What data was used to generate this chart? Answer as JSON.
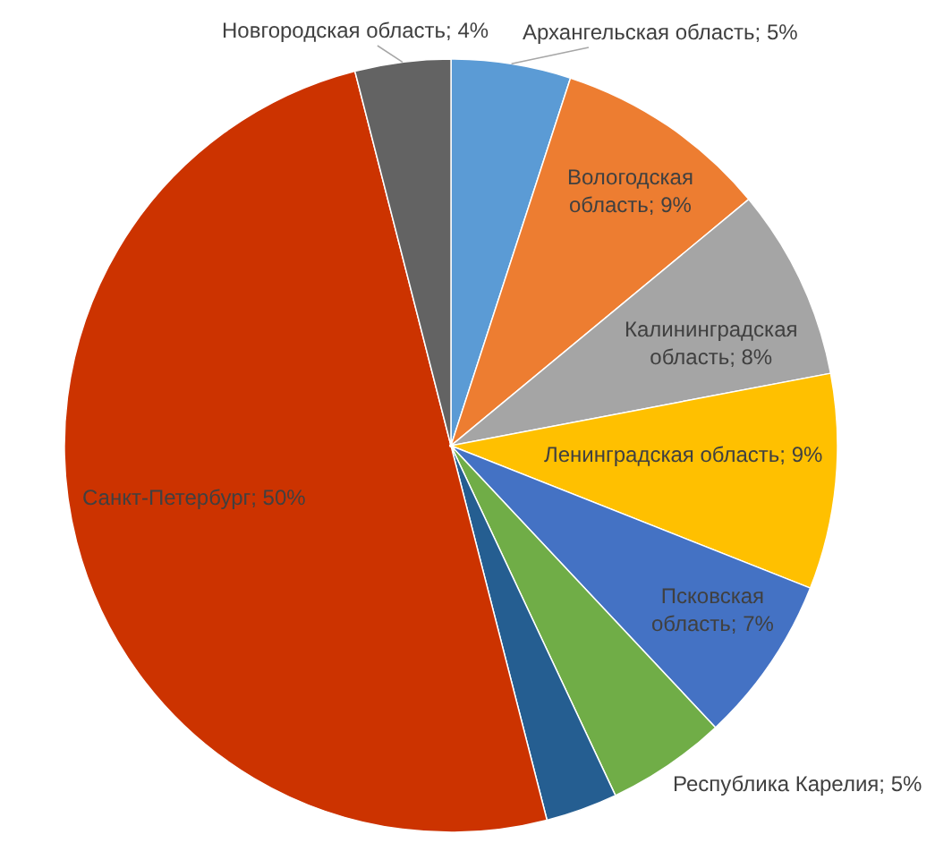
{
  "chart_data": {
    "type": "pie",
    "categories": [
      "Архангельская область",
      "Вологодская область",
      "Калининградская область",
      "Ленинградская область",
      "Псковская область",
      "Республика Карелия",
      null,
      "Санкт-Петербург",
      "Новгородская область"
    ],
    "values": [
      5,
      9,
      8,
      9,
      7,
      5,
      3,
      50,
      4
    ],
    "value_labels": [
      "5%",
      "9%",
      "8%",
      "9%",
      "7%",
      "5%",
      null,
      "50%",
      "4%"
    ],
    "colors": [
      "#5b9bd5",
      "#ed7d31",
      "#a5a5a5",
      "#ffc000",
      "#4472c4",
      "#70ad47",
      "#255e91",
      "#cc3300",
      "#636363"
    ]
  }
}
